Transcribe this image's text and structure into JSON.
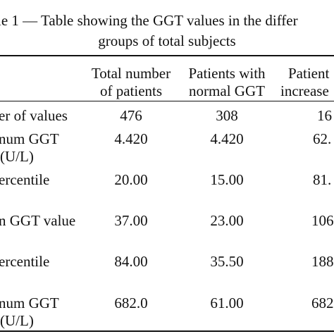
{
  "table": {
    "caption_line1": "le 1 — Table showing the GGT values in the differ",
    "caption_line2": "groups of total subjects",
    "headers": [
      {
        "line1": "Total number",
        "line2": "of patients"
      },
      {
        "line1": "Patients with",
        "line2": "normal GGT"
      },
      {
        "line1": "Patient",
        "line2": "increase"
      }
    ],
    "rows": [
      {
        "label1": "er of values",
        "label2": "",
        "values": [
          "476",
          "308",
          "16"
        ]
      },
      {
        "label1": "num GGT",
        "label2": "(U/L)",
        "values": [
          "4.420",
          "4.420",
          "62."
        ]
      },
      {
        "label1": "ercentile",
        "label2": "",
        "values": [
          "20.00",
          "15.00",
          "81."
        ]
      },
      {
        "label1": "n GGT value",
        "label2": "",
        "values": [
          "37.00",
          "23.00",
          "106"
        ]
      },
      {
        "label1": "ercentile",
        "label2": "",
        "values": [
          "84.00",
          "35.50",
          "188"
        ]
      },
      {
        "label1": "num GGT",
        "label2": "(U/L)",
        "values": [
          "682.0",
          "61.00",
          "682"
        ]
      }
    ]
  }
}
